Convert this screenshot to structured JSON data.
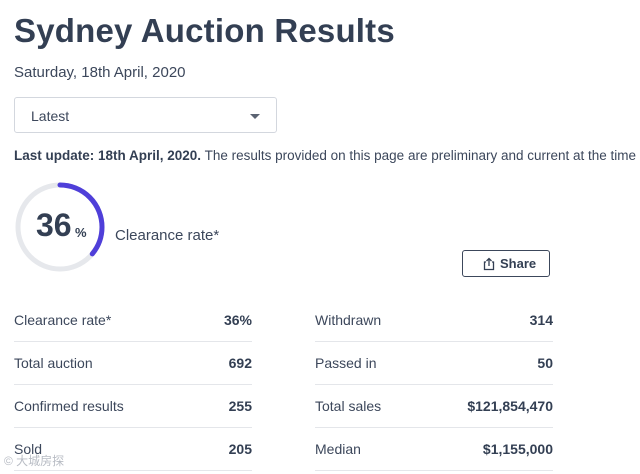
{
  "header": {
    "title": "Sydney Auction Results",
    "date": "Saturday, 18th April, 2020"
  },
  "filter": {
    "selected": "Latest"
  },
  "update": {
    "label": "Last update: 18th April, 2020.",
    "text": " The results provided on this page are preliminary and current at the time o"
  },
  "gauge": {
    "value": "36",
    "unit": "%",
    "label": "Clearance rate*",
    "fraction": 0.36
  },
  "share": {
    "label": "Share",
    "icon": "share-icon"
  },
  "stats_left": [
    {
      "label": "Clearance rate*",
      "value": "36%"
    },
    {
      "label": "Total auction",
      "value": "692"
    },
    {
      "label": "Confirmed results",
      "value": "255"
    },
    {
      "label": "Sold",
      "value": "205"
    }
  ],
  "stats_right": [
    {
      "label": "Withdrawn",
      "value": "314"
    },
    {
      "label": "Passed in",
      "value": "50"
    },
    {
      "label": "Total sales",
      "value": "$121,854,470"
    },
    {
      "label": "Median",
      "value": "$1,155,000"
    }
  ],
  "watermark": {
    "text": "© 大城房探"
  },
  "colors": {
    "accent": "#4f3fd9",
    "track": "#e6e8ec",
    "text": "#333f53"
  }
}
